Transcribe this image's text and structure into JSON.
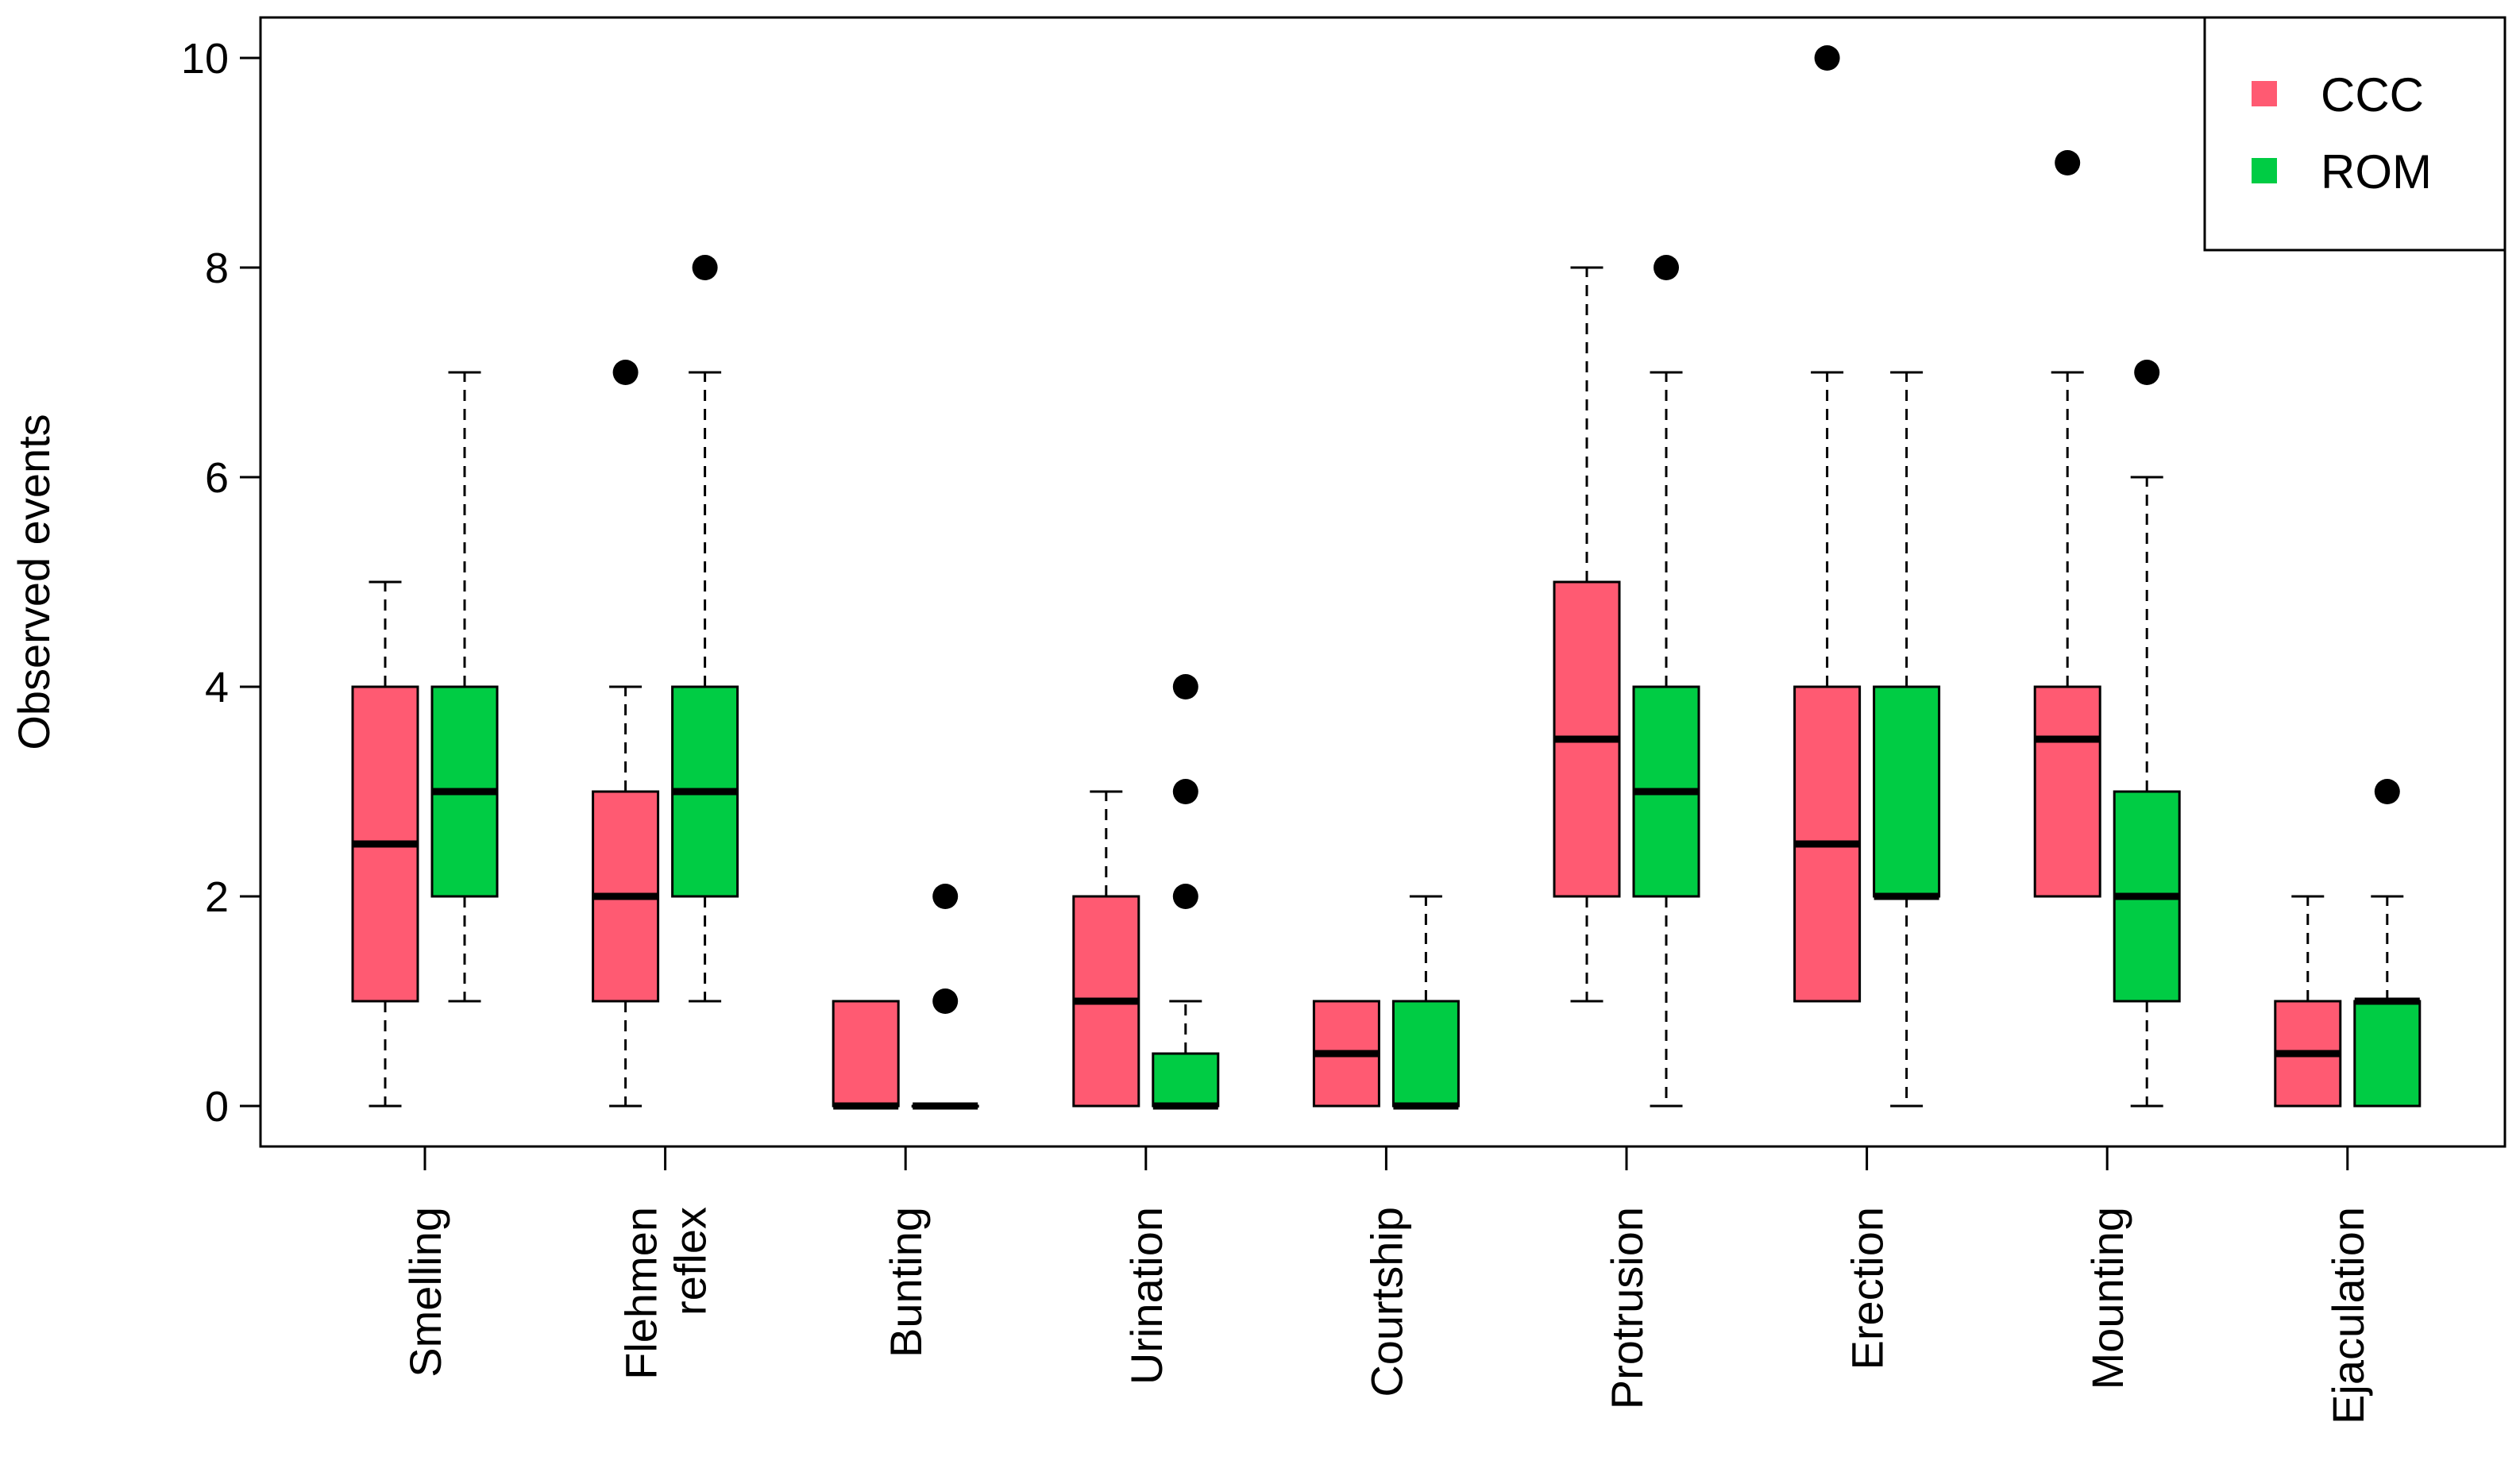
{
  "chart_data": {
    "type": "boxplot",
    "ylabel": "Observed events",
    "xlabel": "",
    "ylim": [
      0,
      10
    ],
    "yticks": [
      0,
      2,
      4,
      6,
      8,
      10
    ],
    "legend": {
      "position": "top-right",
      "entries": [
        {
          "label": "CCC",
          "color": "#ff5a72"
        },
        {
          "label": "ROM",
          "color": "#00cc44"
        }
      ]
    },
    "categories": [
      {
        "lines": [
          "Smelling"
        ]
      },
      {
        "lines": [
          "Flehmen",
          "reflex"
        ]
      },
      {
        "lines": [
          "Bunting"
        ]
      },
      {
        "lines": [
          "Urination"
        ]
      },
      {
        "lines": [
          "Courtship"
        ]
      },
      {
        "lines": [
          "Protrusion"
        ]
      },
      {
        "lines": [
          "Erection"
        ]
      },
      {
        "lines": [
          "Mounting"
        ]
      },
      {
        "lines": [
          "Ejaculation"
        ]
      }
    ],
    "series": [
      {
        "name": "CCC",
        "color": "#ff5a72",
        "boxes": [
          {
            "min": 0,
            "q1": 1,
            "median": 2.5,
            "q3": 4,
            "max": 5,
            "outliers": []
          },
          {
            "min": 0,
            "q1": 1,
            "median": 2,
            "q3": 3,
            "max": 4,
            "outliers": [
              7
            ]
          },
          {
            "min": 0,
            "q1": 0,
            "median": 0,
            "q3": 1,
            "max": 1,
            "outliers": []
          },
          {
            "min": 0,
            "q1": 0,
            "median": 1,
            "q3": 2,
            "max": 3,
            "outliers": []
          },
          {
            "min": 0,
            "q1": 0,
            "median": 0.5,
            "q3": 1,
            "max": 1,
            "outliers": []
          },
          {
            "min": 1,
            "q1": 2,
            "median": 3.5,
            "q3": 5,
            "max": 8,
            "outliers": []
          },
          {
            "min": 1,
            "q1": 1,
            "median": 2.5,
            "q3": 4,
            "max": 7,
            "outliers": [
              10
            ]
          },
          {
            "min": 2,
            "q1": 2,
            "median": 3.5,
            "q3": 4,
            "max": 7,
            "outliers": [
              9
            ]
          },
          {
            "min": 0,
            "q1": 0,
            "median": 0.5,
            "q3": 1,
            "max": 2,
            "outliers": []
          }
        ]
      },
      {
        "name": "ROM",
        "color": "#00cc44",
        "boxes": [
          {
            "min": 1,
            "q1": 2,
            "median": 3,
            "q3": 4,
            "max": 7,
            "outliers": []
          },
          {
            "min": 1,
            "q1": 2,
            "median": 3,
            "q3": 4,
            "max": 7,
            "outliers": [
              8
            ]
          },
          {
            "min": 0,
            "q1": 0,
            "median": 0,
            "q3": 0,
            "max": 0,
            "outliers": [
              1,
              2
            ]
          },
          {
            "min": 0,
            "q1": 0,
            "median": 0,
            "q3": 0.5,
            "max": 1,
            "outliers": [
              2,
              3,
              4
            ]
          },
          {
            "min": 0,
            "q1": 0,
            "median": 0,
            "q3": 1,
            "max": 2,
            "outliers": []
          },
          {
            "min": 0,
            "q1": 2,
            "median": 3,
            "q3": 4,
            "max": 7,
            "outliers": [
              8
            ]
          },
          {
            "min": 0,
            "q1": 2,
            "median": 2,
            "q3": 4,
            "max": 7,
            "outliers": []
          },
          {
            "min": 0,
            "q1": 1,
            "median": 2,
            "q3": 3,
            "max": 6,
            "outliers": [
              7
            ]
          },
          {
            "min": 0,
            "q1": 0,
            "median": 1,
            "q3": 1,
            "max": 2,
            "outliers": [
              3
            ]
          }
        ]
      }
    ]
  }
}
